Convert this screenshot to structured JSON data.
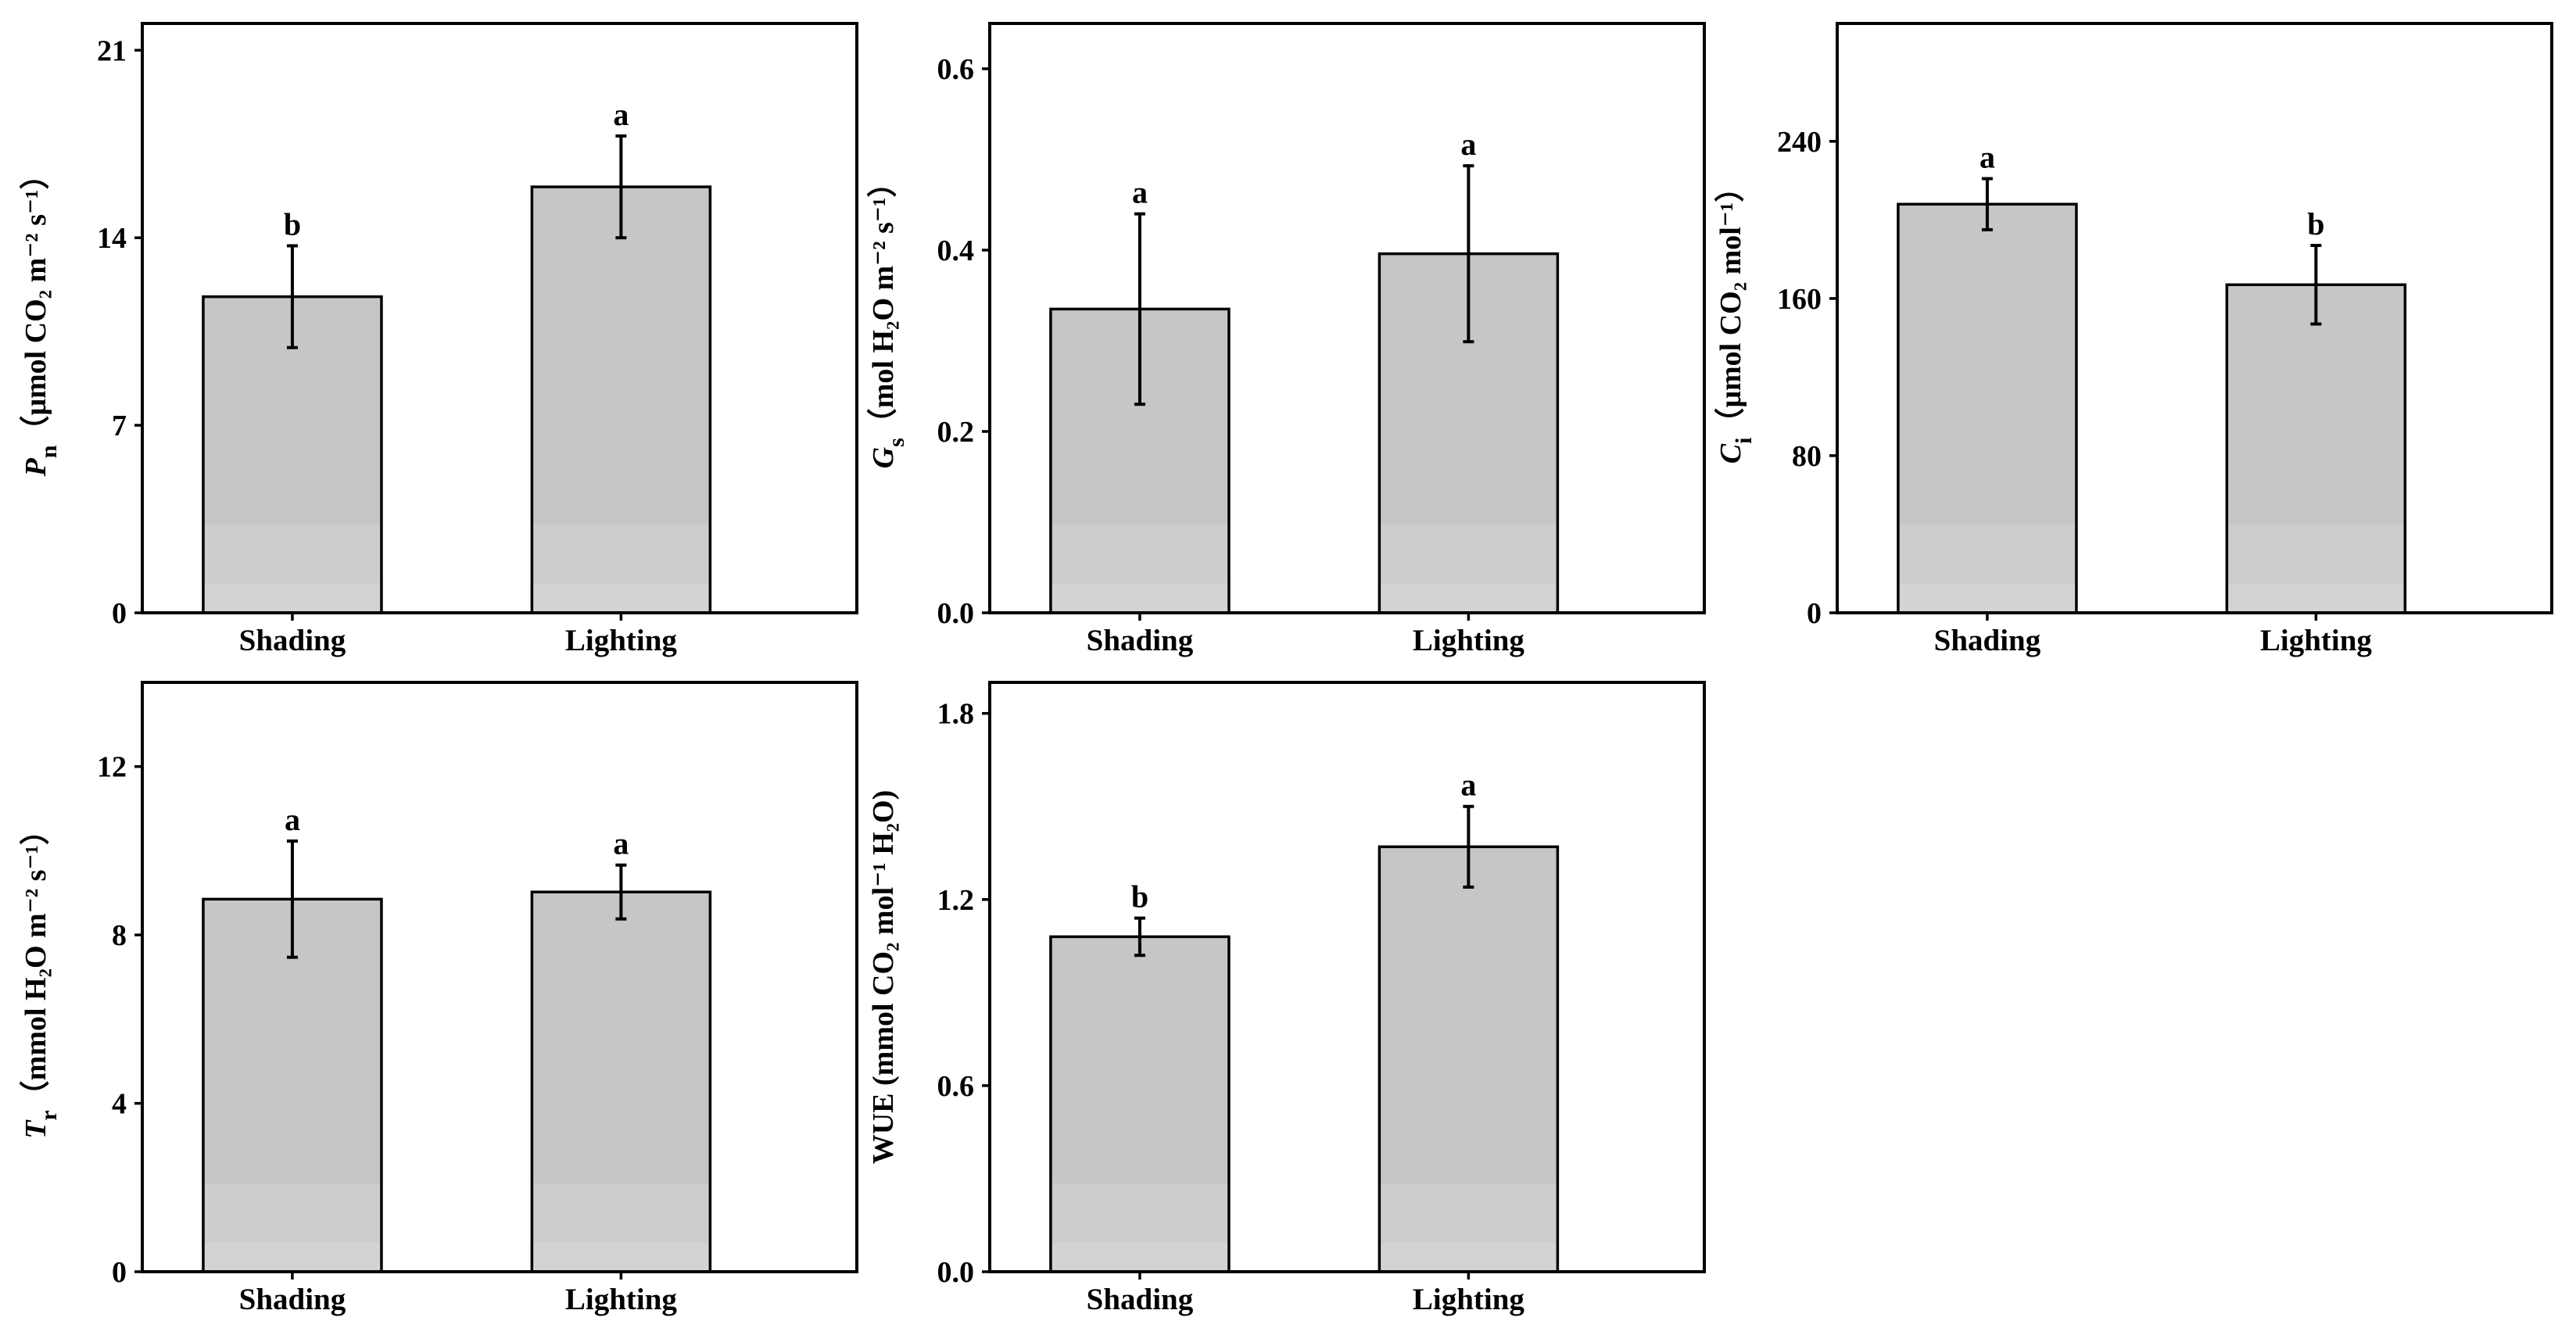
{
  "figure_title": "",
  "chart_data": [
    {
      "id": "pn",
      "type": "bar",
      "title": "",
      "categories": [
        "Shading",
        "Lighting"
      ],
      "values": [
        11.8,
        15.9
      ],
      "errors": [
        1.9,
        1.9
      ],
      "significance": [
        "b",
        "a"
      ],
      "ylim": [
        0,
        22
      ],
      "yticks": [
        0,
        7,
        14,
        21
      ],
      "ytick_labels": [
        "0",
        "7",
        "14",
        "21"
      ],
      "xlabel": "",
      "ylabel_var": "P",
      "ylabel_sub": "n",
      "ylabel_unit": "（μmol CO₂ m⁻² s⁻¹）"
    },
    {
      "id": "gs",
      "type": "bar",
      "title": "",
      "categories": [
        "Shading",
        "Lighting"
      ],
      "values": [
        0.335,
        0.396
      ],
      "errors": [
        0.105,
        0.097
      ],
      "significance": [
        "a",
        "a"
      ],
      "ylim": [
        0,
        0.65
      ],
      "yticks": [
        0,
        0.2,
        0.4,
        0.6
      ],
      "ytick_labels": [
        "0.0",
        "0.2",
        "0.4",
        "0.6"
      ],
      "xlabel": "",
      "ylabel_var": "G",
      "ylabel_sub": "s",
      "ylabel_unit": "（mol H₂O m⁻² s⁻¹）"
    },
    {
      "id": "ci",
      "type": "bar",
      "title": "",
      "categories": [
        "Shading",
        "Lighting"
      ],
      "values": [
        208,
        167
      ],
      "errors": [
        13,
        20
      ],
      "significance": [
        "a",
        "b"
      ],
      "ylim": [
        0,
        300
      ],
      "yticks": [
        0,
        80,
        160,
        240
      ],
      "ytick_labels": [
        "0",
        "80",
        "160",
        "240"
      ],
      "xlabel": "",
      "ylabel_var": "C",
      "ylabel_sub": "i",
      "ylabel_unit": "（μmol CO₂ mol⁻¹）"
    },
    {
      "id": "tr",
      "type": "bar",
      "title": "",
      "categories": [
        "Shading",
        "Lighting"
      ],
      "values": [
        8.85,
        9.02
      ],
      "errors": [
        1.38,
        0.64
      ],
      "significance": [
        "a",
        "a"
      ],
      "ylim": [
        0,
        14
      ],
      "yticks": [
        0,
        4,
        8,
        12
      ],
      "ytick_labels": [
        "0",
        "4",
        "8",
        "12"
      ],
      "xlabel": "",
      "ylabel_var": "T",
      "ylabel_sub": "r",
      "ylabel_unit": "（mmol H₂O m⁻² s⁻¹）"
    },
    {
      "id": "wue",
      "type": "bar",
      "title": "",
      "categories": [
        "Shading",
        "Lighting"
      ],
      "values": [
        1.08,
        1.37
      ],
      "errors": [
        0.06,
        0.13
      ],
      "significance": [
        "b",
        "a"
      ],
      "ylim": [
        0,
        1.9
      ],
      "yticks": [
        0,
        0.6,
        1.2,
        1.8
      ],
      "ytick_labels": [
        "0.0",
        "0.6",
        "1.2",
        "1.8"
      ],
      "xlabel": "",
      "ylabel_var": "",
      "ylabel_sub": "",
      "ylabel_unit": "WUE (mmol CO₂ mol⁻¹ H₂O)"
    }
  ],
  "colors": {
    "bar_fill": "#c6c6c6",
    "bar_band_light": "#cdcdcd",
    "bar_band_lighter": "#d3d3d3",
    "axis": "#000000",
    "background": "#ffffff"
  }
}
